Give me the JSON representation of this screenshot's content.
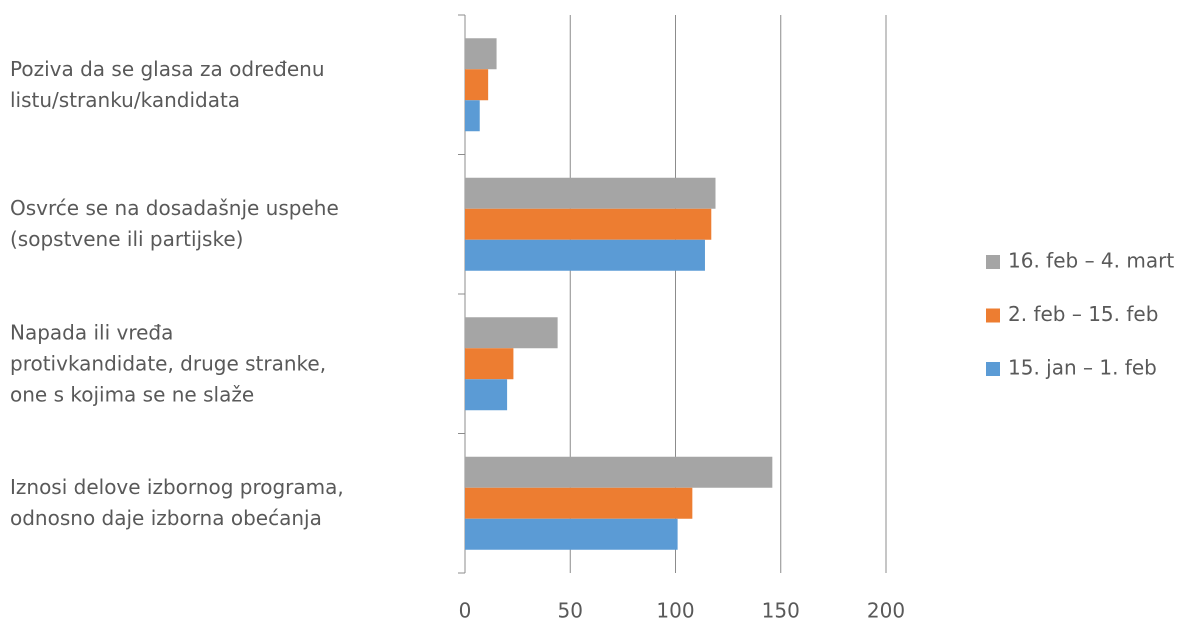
{
  "chart_data": {
    "type": "bar",
    "orientation": "horizontal",
    "categories": [
      "Poziva da se glasa za određenu\nlistu/stranku/kandidata",
      "Osvrće se na dosadašnje uspehe\n(sopstvene ili partijske)",
      "Napada ili vređa\nprotivkandidate, druge stranke,\none s kojima se ne slaže",
      "Iznosi delove izbornog programa,\nodnosno daje izborna obećanja"
    ],
    "series": [
      {
        "name": "16. feb – 4. mart",
        "color": "#a5a5a5",
        "values": [
          15,
          119,
          44,
          146
        ]
      },
      {
        "name": "2. feb – 15. feb",
        "color": "#ed7d31",
        "values": [
          11,
          117,
          23,
          108
        ]
      },
      {
        "name": "15. jan – 1. feb",
        "color": "#5b9bd5",
        "values": [
          7,
          114,
          20,
          101
        ]
      }
    ],
    "xlim": [
      0,
      200
    ],
    "xticks": [
      0,
      50,
      100,
      150,
      200
    ],
    "grid": true,
    "legend": "right"
  }
}
